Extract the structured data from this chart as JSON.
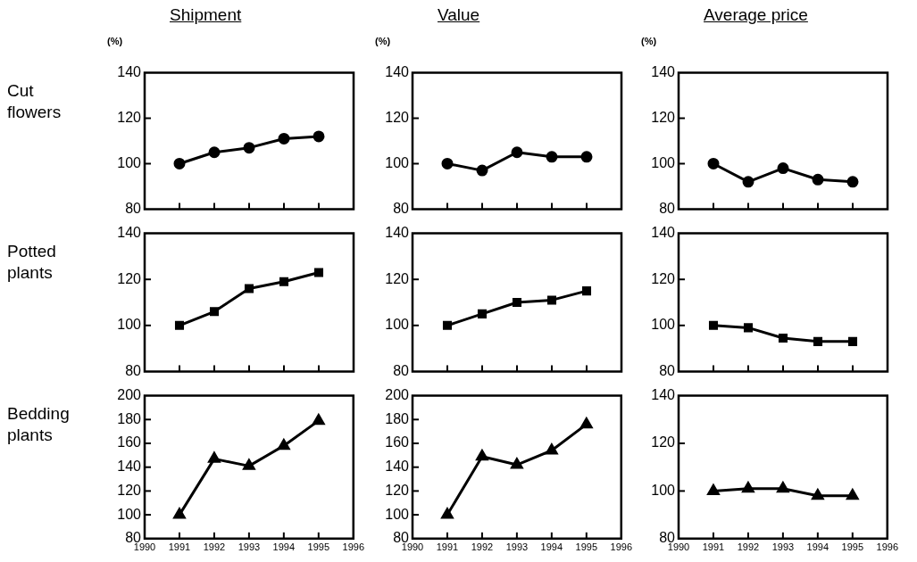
{
  "chart_data": [
    {
      "type": "line",
      "title": "Shipment",
      "ylabel": "(%)",
      "annotations": [
        "Cut flowers"
      ],
      "x": [
        1991,
        1992,
        1993,
        1994,
        1995
      ],
      "xlim": [
        1990,
        1996
      ],
      "xticks": [
        1990,
        1991,
        1992,
        1993,
        1994,
        1995,
        1996
      ],
      "ylim": [
        80,
        140
      ],
      "yticks": [
        80,
        100,
        120,
        140
      ],
      "marker": "circle",
      "tick_labels": "y",
      "series": [
        {
          "color": "#000000",
          "values": [
            100,
            105,
            107,
            111,
            112
          ]
        }
      ]
    },
    {
      "type": "line",
      "title": "Value",
      "ylabel": "(%)",
      "x": [
        1991,
        1992,
        1993,
        1994,
        1995
      ],
      "xlim": [
        1990,
        1996
      ],
      "xticks": [
        1990,
        1991,
        1992,
        1993,
        1994,
        1995,
        1996
      ],
      "ylim": [
        80,
        140
      ],
      "yticks": [
        80,
        100,
        120,
        140
      ],
      "marker": "circle",
      "tick_labels": "y",
      "series": [
        {
          "color": "#000000",
          "values": [
            100,
            97,
            105,
            103,
            103
          ]
        }
      ]
    },
    {
      "type": "line",
      "title": "Average price",
      "ylabel": "(%)",
      "x": [
        1991,
        1992,
        1993,
        1994,
        1995
      ],
      "xlim": [
        1990,
        1996
      ],
      "xticks": [
        1990,
        1991,
        1992,
        1993,
        1994,
        1995,
        1996
      ],
      "ylim": [
        80,
        140
      ],
      "yticks": [
        80,
        100,
        120,
        140
      ],
      "marker": "circle",
      "tick_labels": "y",
      "series": [
        {
          "color": "#000000",
          "values": [
            100,
            92,
            98,
            93,
            92
          ]
        }
      ]
    },
    {
      "type": "line",
      "annotations": [
        "Potted plants"
      ],
      "x": [
        1991,
        1992,
        1993,
        1994,
        1995
      ],
      "xlim": [
        1990,
        1996
      ],
      "xticks": [
        1990,
        1991,
        1992,
        1993,
        1994,
        1995,
        1996
      ],
      "ylim": [
        80,
        140
      ],
      "yticks": [
        80,
        100,
        120,
        140
      ],
      "marker": "square",
      "tick_labels": "y",
      "series": [
        {
          "color": "#000000",
          "values": [
            100,
            106,
            116,
            119,
            123
          ]
        }
      ]
    },
    {
      "type": "line",
      "x": [
        1991,
        1992,
        1993,
        1994,
        1995
      ],
      "xlim": [
        1990,
        1996
      ],
      "xticks": [
        1990,
        1991,
        1992,
        1993,
        1994,
        1995,
        1996
      ],
      "ylim": [
        80,
        140
      ],
      "yticks": [
        80,
        100,
        120,
        140
      ],
      "marker": "square",
      "tick_labels": "y",
      "series": [
        {
          "color": "#000000",
          "values": [
            100,
            105,
            110,
            111,
            115
          ]
        }
      ]
    },
    {
      "type": "line",
      "x": [
        1991,
        1992,
        1993,
        1994,
        1995
      ],
      "xlim": [
        1990,
        1996
      ],
      "xticks": [
        1990,
        1991,
        1992,
        1993,
        1994,
        1995,
        1996
      ],
      "ylim": [
        80,
        140
      ],
      "yticks": [
        80,
        100,
        120,
        140
      ],
      "marker": "square",
      "tick_labels": "y",
      "series": [
        {
          "color": "#000000",
          "values": [
            100,
            99,
            94.5,
            93,
            93
          ]
        }
      ]
    },
    {
      "type": "line",
      "annotations": [
        "Bedding plants"
      ],
      "x": [
        1991,
        1992,
        1993,
        1994,
        1995
      ],
      "xlim": [
        1990,
        1996
      ],
      "xticks": [
        1990,
        1991,
        1992,
        1993,
        1994,
        1995,
        1996
      ],
      "ylim": [
        80,
        200
      ],
      "yticks": [
        80,
        100,
        120,
        140,
        160,
        180,
        200
      ],
      "marker": "triangle",
      "series": [
        {
          "color": "#000000",
          "values": [
            100,
            147,
            141,
            158,
            179
          ]
        }
      ]
    },
    {
      "type": "line",
      "x": [
        1991,
        1992,
        1993,
        1994,
        1995
      ],
      "xlim": [
        1990,
        1996
      ],
      "xticks": [
        1990,
        1991,
        1992,
        1993,
        1994,
        1995,
        1996
      ],
      "ylim": [
        80,
        200
      ],
      "yticks": [
        80,
        100,
        120,
        140,
        160,
        180,
        200
      ],
      "marker": "triangle",
      "series": [
        {
          "color": "#000000",
          "values": [
            100,
            149,
            142,
            154,
            176
          ]
        }
      ]
    },
    {
      "type": "line",
      "x": [
        1991,
        1992,
        1993,
        1994,
        1995
      ],
      "xlim": [
        1990,
        1996
      ],
      "xticks": [
        1990,
        1991,
        1992,
        1993,
        1994,
        1995,
        1996
      ],
      "ylim": [
        80,
        140
      ],
      "yticks": [
        80,
        100,
        120,
        140
      ],
      "marker": "triangle",
      "series": [
        {
          "color": "#000000",
          "values": [
            100,
            101,
            101,
            98,
            98
          ]
        }
      ]
    }
  ]
}
